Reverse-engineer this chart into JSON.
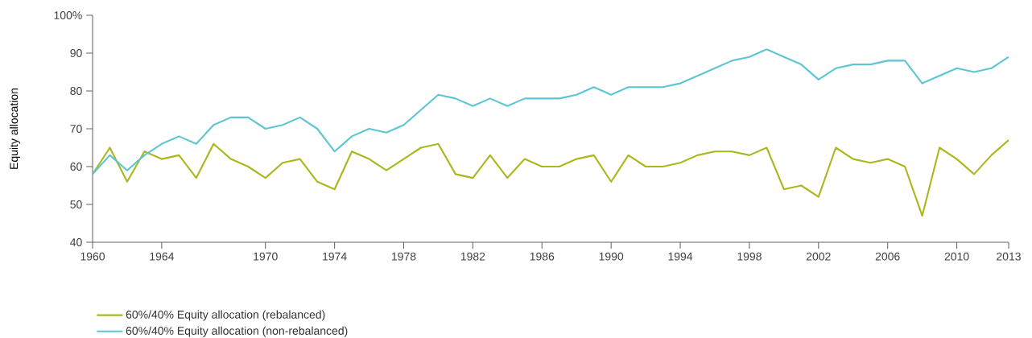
{
  "chart_data": {
    "type": "line",
    "ylabel": "Equity allocation",
    "x": [
      1960,
      1961,
      1962,
      1963,
      1964,
      1965,
      1966,
      1967,
      1968,
      1969,
      1970,
      1971,
      1972,
      1973,
      1974,
      1975,
      1976,
      1977,
      1978,
      1979,
      1980,
      1981,
      1982,
      1983,
      1984,
      1985,
      1986,
      1987,
      1988,
      1989,
      1990,
      1991,
      1992,
      1993,
      1994,
      1995,
      1996,
      1997,
      1998,
      1999,
      2000,
      2001,
      2002,
      2003,
      2004,
      2005,
      2006,
      2007,
      2008,
      2009,
      2010,
      2011,
      2012,
      2013
    ],
    "series": [
      {
        "name": "60%/40% Equity allocation (rebalanced)",
        "color": "#aab81e",
        "values": [
          58,
          65,
          56,
          64,
          62,
          63,
          57,
          66,
          62,
          60,
          57,
          61,
          62,
          56,
          54,
          64,
          62,
          59,
          62,
          65,
          66,
          58,
          57,
          63,
          57,
          62,
          60,
          60,
          62,
          63,
          56,
          63,
          60,
          60,
          61,
          63,
          64,
          64,
          63,
          65,
          54,
          55,
          52,
          65,
          62,
          61,
          62,
          60,
          47,
          65,
          62,
          58,
          63,
          67
        ]
      },
      {
        "name": "60%/40% Equity allocation (non-rebalanced)",
        "color": "#5ec6d2",
        "values": [
          58,
          63,
          59,
          63,
          66,
          68,
          66,
          71,
          73,
          73,
          70,
          71,
          73,
          70,
          64,
          68,
          70,
          69,
          71,
          75,
          79,
          78,
          76,
          78,
          76,
          78,
          78,
          78,
          79,
          81,
          79,
          81,
          81,
          81,
          82,
          84,
          86,
          88,
          89,
          91,
          89,
          87,
          83,
          86,
          87,
          87,
          88,
          88,
          82,
          84,
          86,
          85,
          86,
          89
        ]
      }
    ],
    "xlim": [
      1960,
      2013
    ],
    "ylim": [
      40,
      100
    ],
    "xticks": [
      1960,
      1964,
      1970,
      1974,
      1978,
      1982,
      1986,
      1990,
      1994,
      1998,
      2002,
      2006,
      2010,
      2013
    ],
    "yticks": [
      40,
      50,
      60,
      70,
      80,
      90,
      {
        "value": 100,
        "label": "100%"
      }
    ],
    "legend": "bottom left",
    "grid": false,
    "marker": "none",
    "line_style": "solid"
  }
}
